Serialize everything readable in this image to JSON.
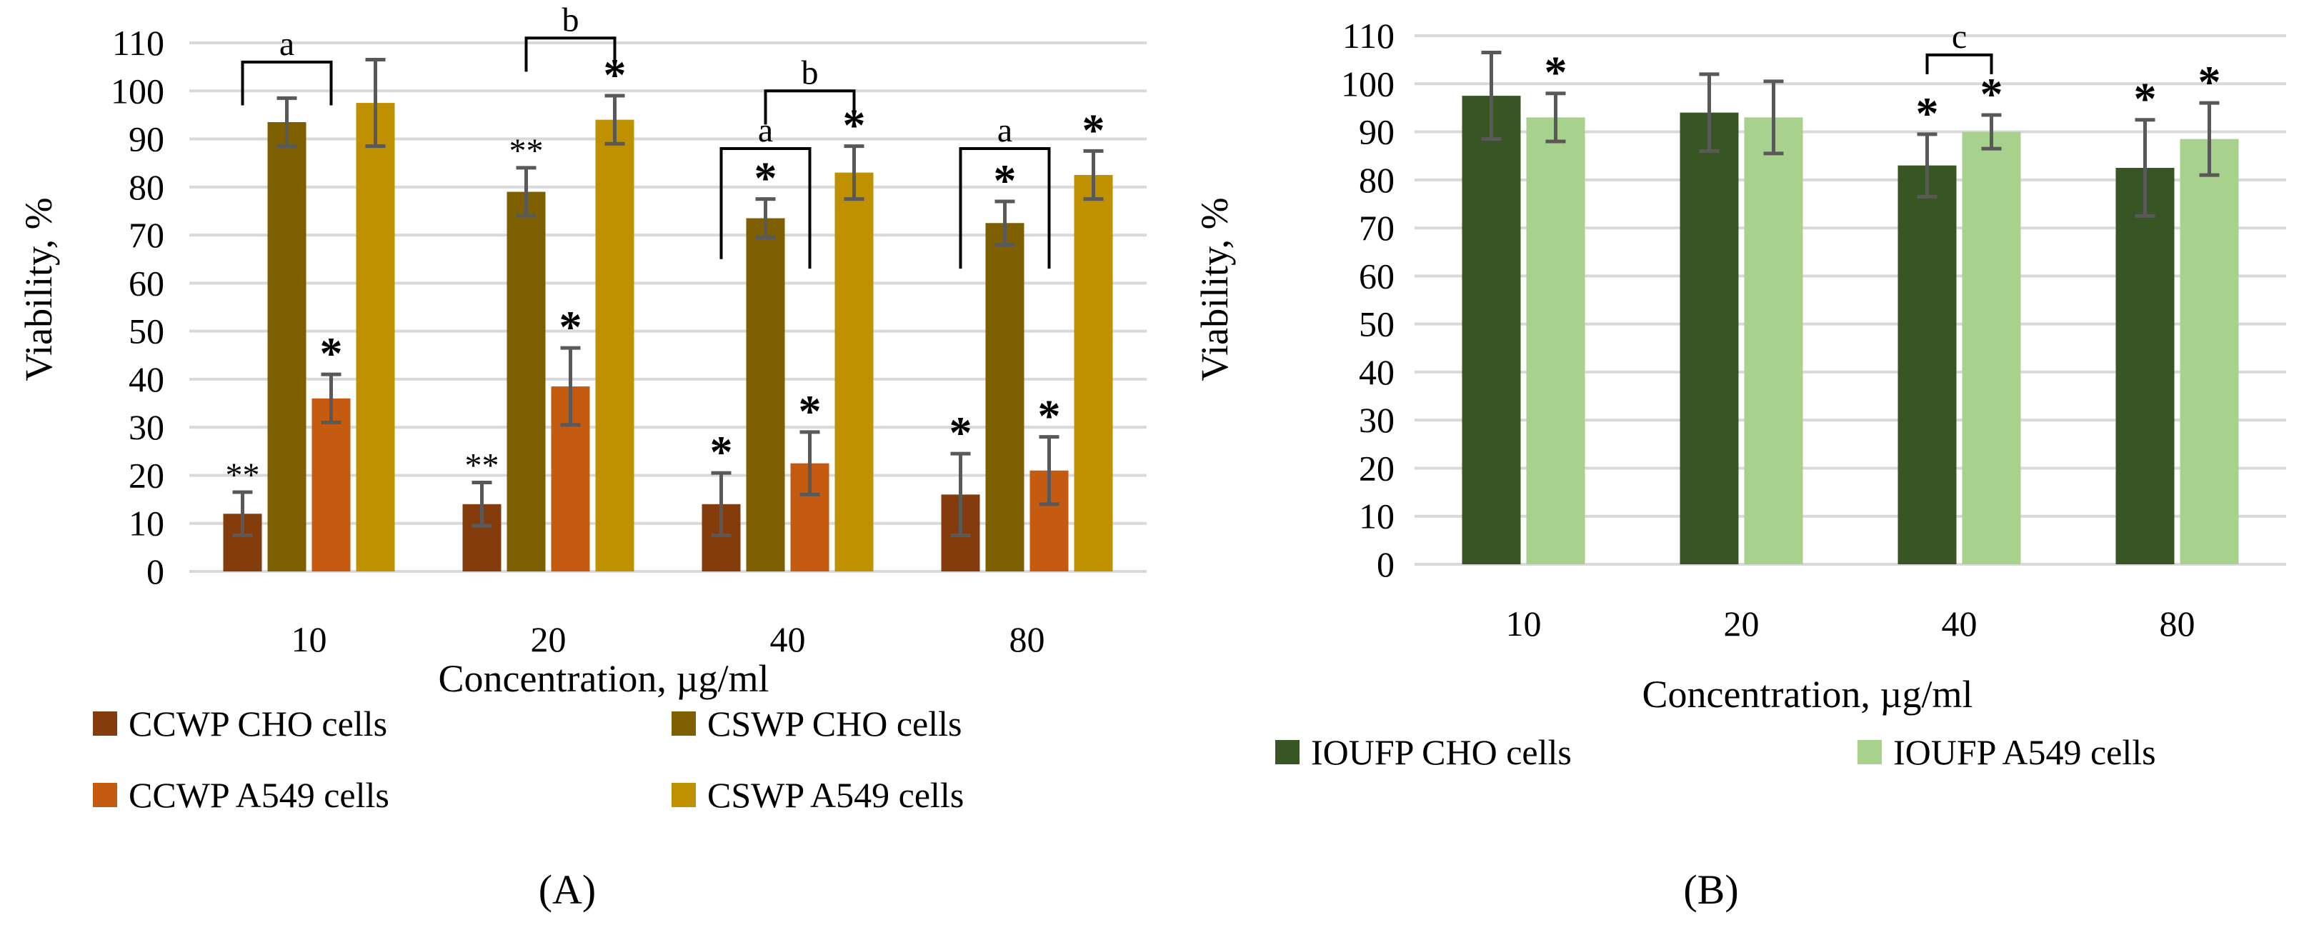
{
  "chart_data": [
    {
      "panel": "A",
      "type": "bar",
      "xlabel": "Concentration, µg/ml",
      "ylabel": "Viability, %",
      "ylim": [
        0,
        110
      ],
      "yticks": [
        0,
        10,
        20,
        30,
        40,
        50,
        60,
        70,
        80,
        90,
        100,
        110
      ],
      "grid": true,
      "legend_position": "bottom",
      "categories": [
        "10",
        "20",
        "40",
        "80"
      ],
      "series": [
        {
          "name": "CCWP CHO cells",
          "color": "#843C0C",
          "values": [
            12,
            14,
            14,
            16
          ],
          "errors": [
            4.5,
            4.5,
            6.5,
            8.5
          ],
          "stars": [
            "**",
            "**",
            "*",
            "*"
          ]
        },
        {
          "name": "CSWP CHO cells",
          "color": "#7F6000",
          "values": [
            93.5,
            79,
            73.5,
            72.5
          ],
          "errors": [
            5,
            5,
            4,
            4.5
          ],
          "stars": [
            "",
            "**",
            "*",
            "*"
          ]
        },
        {
          "name": "CCWP A549 cells",
          "color": "#C55A11",
          "values": [
            36,
            38.5,
            22.5,
            21
          ],
          "errors": [
            5,
            8,
            6.5,
            7
          ],
          "stars": [
            "*",
            "*",
            "*",
            "*"
          ]
        },
        {
          "name": "CSWP A549 cells",
          "color": "#BF9000",
          "values": [
            97.5,
            94,
            83,
            82.5
          ],
          "errors": [
            9,
            5,
            5.5,
            5
          ],
          "stars": [
            "",
            "*",
            "*",
            "*"
          ]
        }
      ],
      "brackets": [
        {
          "label": "a",
          "from_category": 0,
          "from_series": 0,
          "to_category": 0,
          "to_series": 2,
          "y": 106,
          "drop_to": [
            97,
            97
          ]
        },
        {
          "label": "b",
          "from_category": 1,
          "from_series": 1,
          "to_category": 1,
          "to_series": 3,
          "y": 111,
          "drop_to": [
            104,
            104
          ]
        },
        {
          "label": "b",
          "from_category": 2,
          "from_series": 1,
          "to_category": 2,
          "to_series": 3,
          "y": 100,
          "drop_to": [
            93,
            93
          ]
        },
        {
          "label": "a",
          "from_category": 2,
          "from_series": 0,
          "to_category": 2,
          "to_series": 2,
          "y": 88,
          "drop_to": [
            65,
            63
          ]
        },
        {
          "label": "a",
          "from_category": 3,
          "from_series": 0,
          "to_category": 3,
          "to_series": 2,
          "y": 88,
          "drop_to": [
            63,
            63
          ]
        }
      ],
      "panel_label": "(A)"
    },
    {
      "panel": "B",
      "type": "bar",
      "xlabel": "Concentration, µg/ml",
      "ylabel": "Viability, %",
      "ylim": [
        0,
        110
      ],
      "yticks": [
        0,
        10,
        20,
        30,
        40,
        50,
        60,
        70,
        80,
        90,
        100,
        110
      ],
      "grid": true,
      "legend_position": "bottom",
      "categories": [
        "10",
        "20",
        "40",
        "80"
      ],
      "series": [
        {
          "name": "IOUFP CHO cells",
          "color": "#375623",
          "values": [
            97.5,
            94,
            83,
            82.5
          ],
          "errors": [
            9,
            8,
            6.5,
            10
          ],
          "stars": [
            "",
            "",
            "*",
            "*"
          ]
        },
        {
          "name": "IOUFP A549 cells",
          "color": "#A9D18E",
          "values": [
            93,
            93,
            90,
            88.5
          ],
          "errors": [
            5,
            7.5,
            3.5,
            7.5
          ],
          "stars": [
            "*",
            "",
            "*",
            "*"
          ]
        }
      ],
      "brackets": [
        {
          "label": "c",
          "from_category": 2,
          "from_series": 0,
          "to_category": 2,
          "to_series": 1,
          "y": 106,
          "drop_to": [
            102,
            102
          ]
        }
      ],
      "panel_label": "(B)"
    }
  ]
}
